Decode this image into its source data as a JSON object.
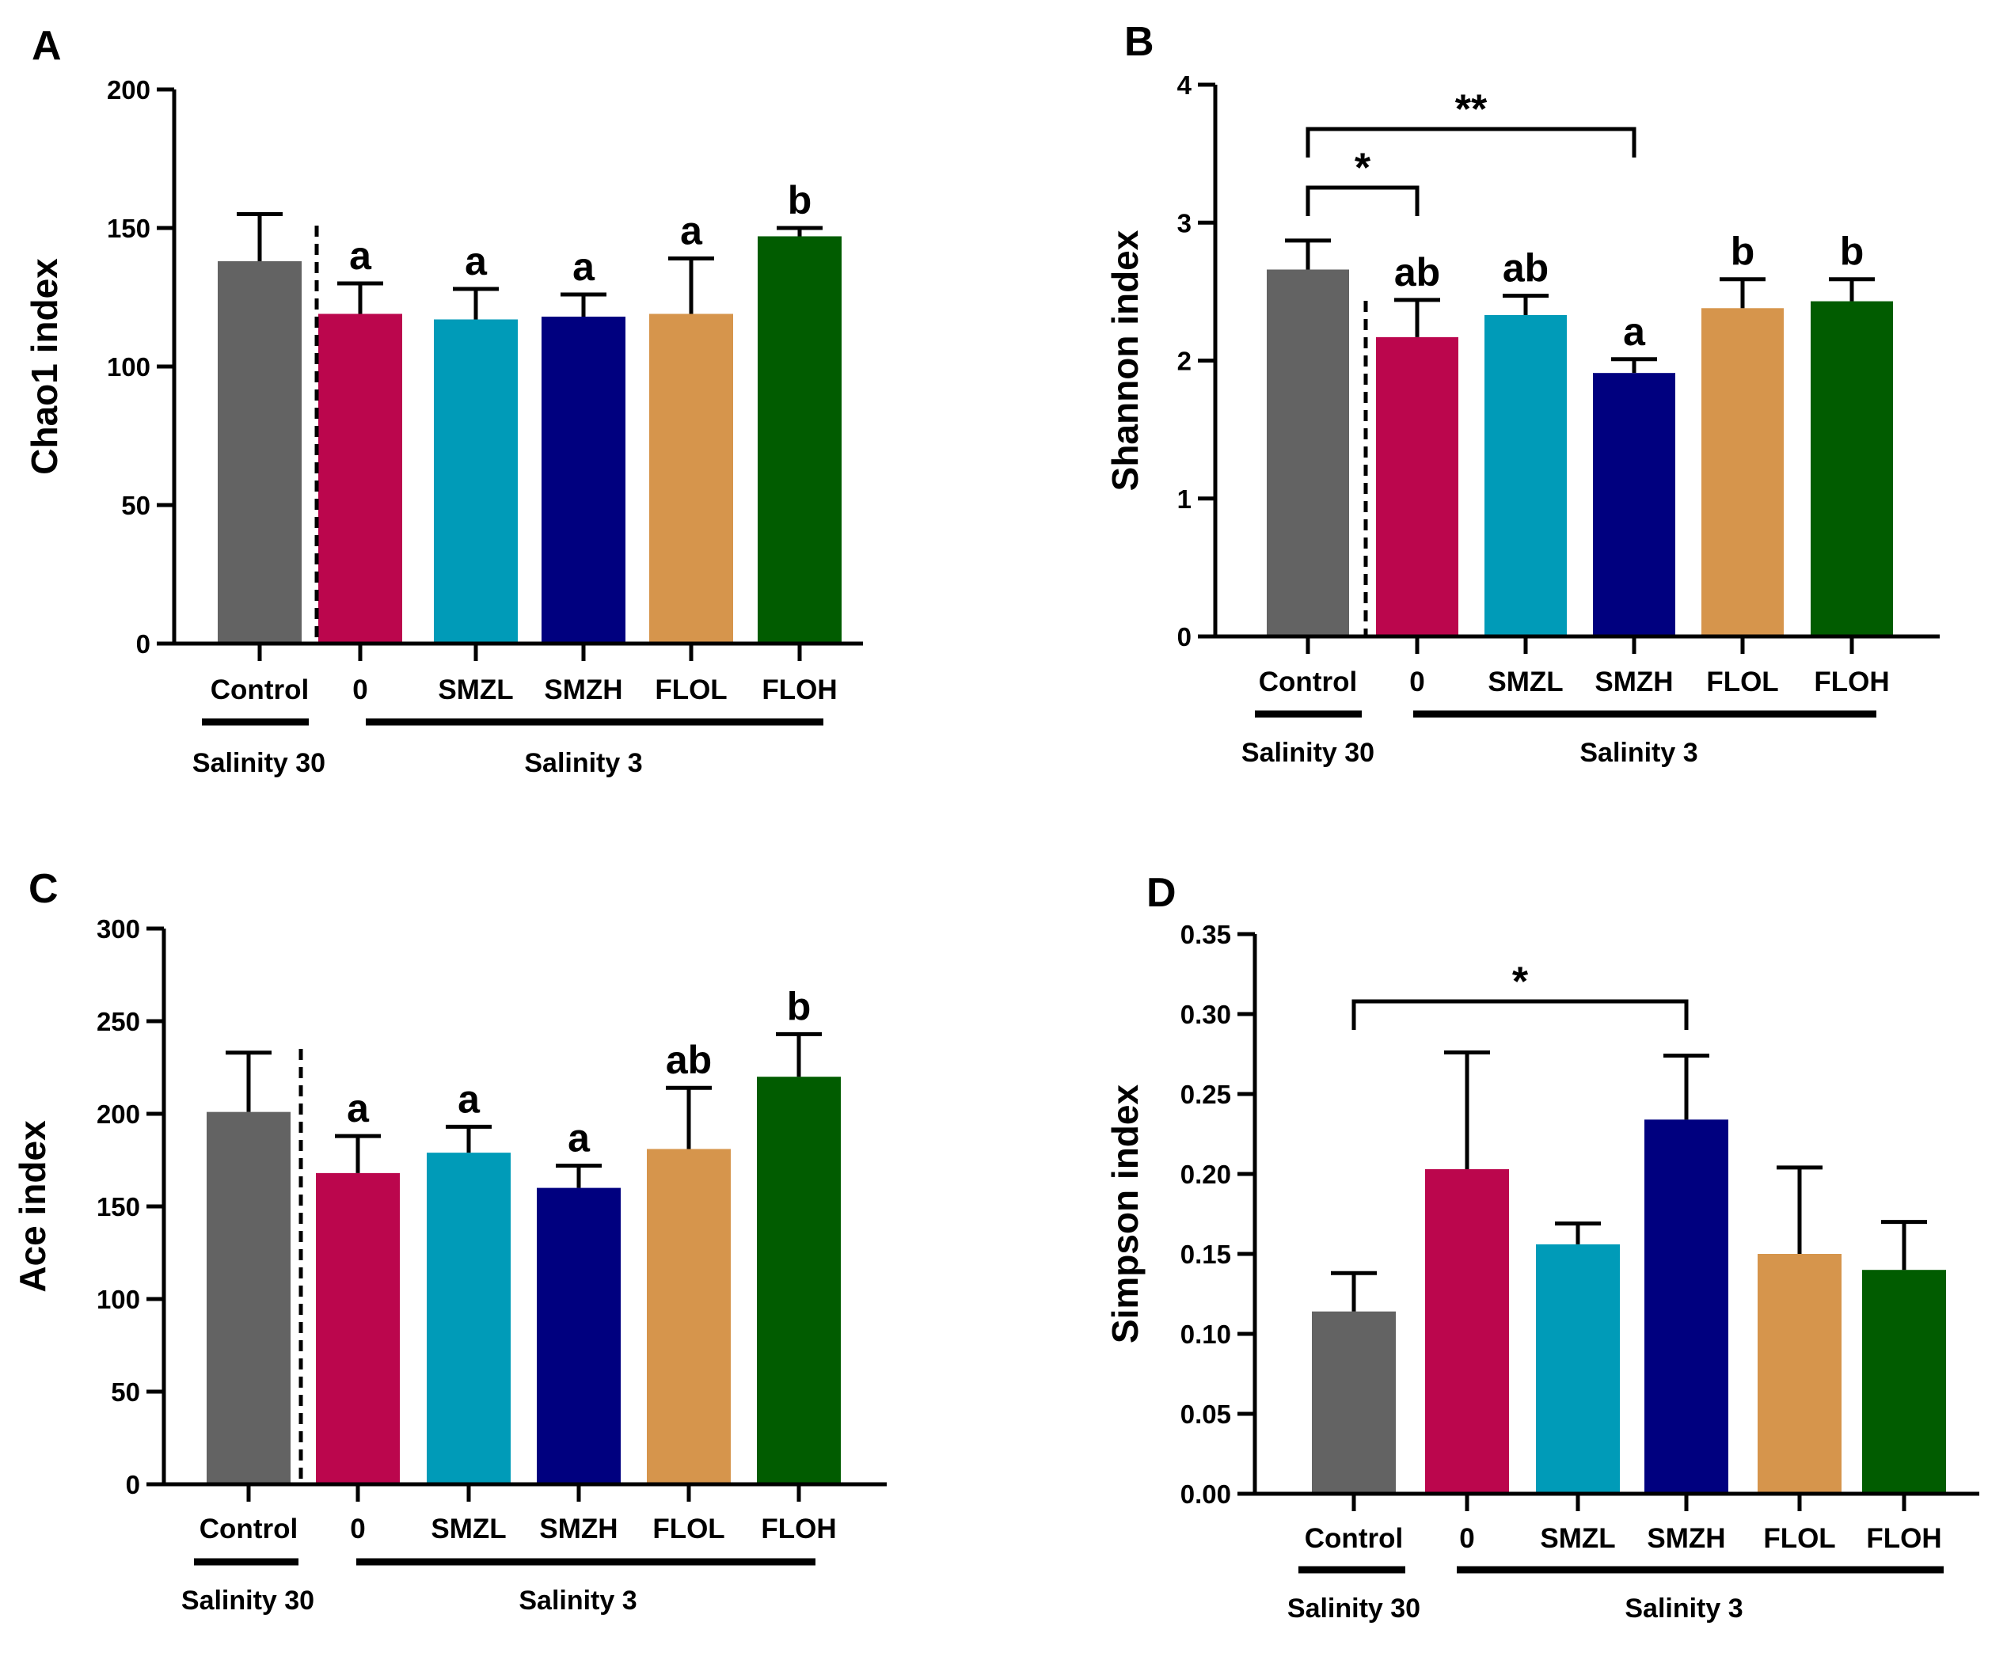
{
  "chart_data": [
    {
      "panel": "A",
      "type": "bar",
      "ylabel": "Chao1 index",
      "ylim": [
        0,
        200
      ],
      "yticks": [
        "0",
        "50",
        "100",
        "150",
        "200"
      ],
      "categories": [
        "Control",
        "0",
        "SMZL",
        "SMZH",
        "FLOL",
        "FLOH"
      ],
      "values": [
        138,
        119,
        117,
        118,
        119,
        147
      ],
      "errors": [
        17,
        11,
        11,
        8,
        20,
        3
      ],
      "sig_letters": [
        "",
        "a",
        "a",
        "a",
        "a",
        "b"
      ],
      "comparisons": [],
      "groups": [
        {
          "label": "Salinity 30",
          "members": [
            "Control"
          ]
        },
        {
          "label": "Salinity 3",
          "members": [
            "0",
            "SMZL",
            "SMZH",
            "FLOL",
            "FLOH"
          ]
        }
      ]
    },
    {
      "panel": "B",
      "type": "bar",
      "ylabel": "Shannon index",
      "ylim": [
        0,
        4
      ],
      "yticks": [
        "0",
        "1",
        "2",
        "3",
        "4"
      ],
      "categories": [
        "Control",
        "0",
        "SMZL",
        "SMZH",
        "FLOL",
        "FLOH"
      ],
      "values": [
        2.66,
        2.17,
        2.33,
        1.91,
        2.38,
        2.43
      ],
      "errors": [
        0.21,
        0.27,
        0.14,
        0.1,
        0.21,
        0.16
      ],
      "sig_letters": [
        "",
        "ab",
        "ab",
        "a",
        "b",
        "b"
      ],
      "comparisons": [
        {
          "from": "Control",
          "to": "0",
          "label": "*"
        },
        {
          "from": "Control",
          "to": "SMZH",
          "label": "**"
        }
      ],
      "groups": [
        {
          "label": "Salinity 30",
          "members": [
            "Control"
          ]
        },
        {
          "label": "Salinity 3",
          "members": [
            "0",
            "SMZL",
            "SMZH",
            "FLOL",
            "FLOH"
          ]
        }
      ]
    },
    {
      "panel": "C",
      "type": "bar",
      "ylabel": "Ace index",
      "ylim": [
        0,
        300
      ],
      "yticks": [
        "0",
        "50",
        "100",
        "150",
        "200",
        "250",
        "300"
      ],
      "categories": [
        "Control",
        "0",
        "SMZL",
        "SMZH",
        "FLOL",
        "FLOH"
      ],
      "values": [
        201,
        168,
        179,
        160,
        181,
        220
      ],
      "errors": [
        32,
        20,
        14,
        12,
        33,
        23
      ],
      "sig_letters": [
        "",
        "a",
        "a",
        "a",
        "ab",
        "b"
      ],
      "comparisons": [],
      "groups": [
        {
          "label": "Salinity 30",
          "members": [
            "Control"
          ]
        },
        {
          "label": "Salinity 3",
          "members": [
            "0",
            "SMZL",
            "SMZH",
            "FLOL",
            "FLOH"
          ]
        }
      ]
    },
    {
      "panel": "D",
      "type": "bar",
      "ylabel": "Simpson index",
      "ylim": [
        0,
        0.35
      ],
      "yticks": [
        "0.00",
        "0.05",
        "0.10",
        "0.15",
        "0.20",
        "0.25",
        "0.30",
        "0.35"
      ],
      "categories": [
        "Control",
        "0",
        "SMZL",
        "SMZH",
        "FLOL",
        "FLOH"
      ],
      "values": [
        0.114,
        0.203,
        0.156,
        0.234,
        0.15,
        0.14
      ],
      "errors": [
        0.024,
        0.073,
        0.013,
        0.04,
        0.054,
        0.03
      ],
      "sig_letters": [
        "",
        "",
        "",
        "",
        "",
        ""
      ],
      "comparisons": [
        {
          "from": "Control",
          "to": "SMZH",
          "label": "*"
        }
      ],
      "groups": [
        {
          "label": "Salinity 30",
          "members": [
            "Control"
          ]
        },
        {
          "label": "Salinity 3",
          "members": [
            "0",
            "SMZL",
            "SMZH",
            "FLOL",
            "FLOH"
          ]
        }
      ]
    }
  ],
  "colors": {
    "bars": [
      "#636363",
      "#bb064d",
      "#009bb8",
      "#00007f",
      "#d6954c",
      "#015c00"
    ]
  }
}
